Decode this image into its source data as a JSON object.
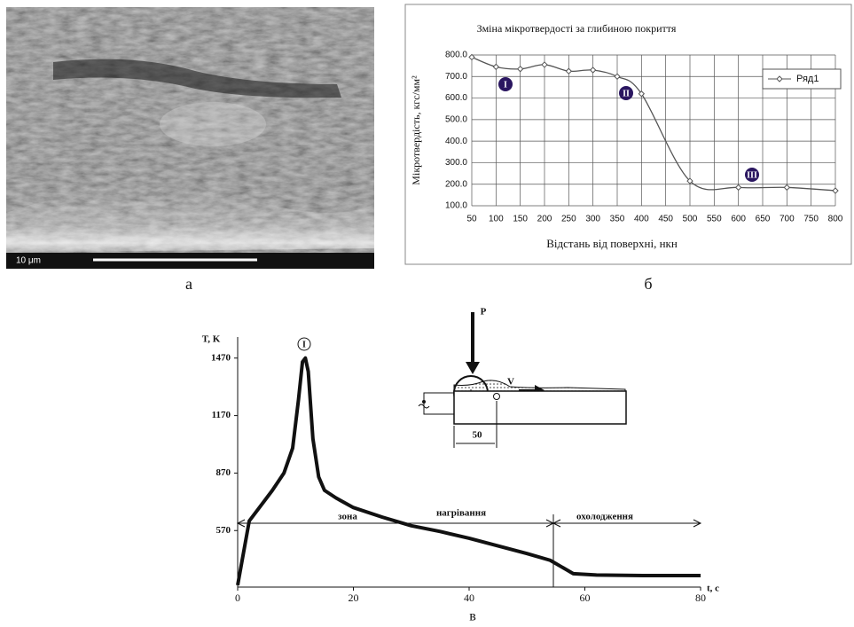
{
  "micrograph": {
    "scale_label": "10 μm"
  },
  "panel_labels": [
    "а",
    "б",
    "в"
  ],
  "chart_data": [
    {
      "type": "line",
      "title": "Зміна мікротвердості за глибиною покриття",
      "x_label": "Відстань від поверхні, нкн",
      "y_label": "Мікротвердість, кгс/мм²",
      "x": [
        50,
        100,
        150,
        200,
        250,
        300,
        350,
        400,
        500,
        600,
        700,
        800
      ],
      "series": [
        {
          "name": "Ряд1",
          "color": "#555555",
          "values": [
            790,
            745,
            735,
            755,
            725,
            730,
            700,
            620,
            215,
            185,
            185,
            170
          ]
        }
      ],
      "xlim": [
        50,
        800
      ],
      "xticks": [
        50,
        100,
        150,
        200,
        250,
        300,
        350,
        400,
        450,
        500,
        550,
        600,
        650,
        700,
        750,
        800
      ],
      "ylim": [
        100,
        800
      ],
      "yticks": [
        {
          "value": 100,
          "label": "100.0"
        },
        {
          "value": 200,
          "label": "200.0"
        },
        {
          "value": 300,
          "label": "300.0"
        },
        {
          "value": 400,
          "label": "400.0"
        },
        {
          "value": 500,
          "label": "500.0"
        },
        {
          "value": 600,
          "label": "600.0"
        },
        {
          "value": 700,
          "label": "700.0"
        },
        {
          "value": 800,
          "label": "800.0"
        }
      ],
      "grid": true,
      "legend": "right",
      "annotations": [
        "I",
        "II",
        "III"
      ]
    },
    {
      "type": "line",
      "x_label": "t, c",
      "y_label": "T, K",
      "x": [
        0,
        2,
        4,
        6,
        8,
        9.5,
        10.5,
        11.2,
        11.7,
        12.2,
        13,
        14,
        15,
        17,
        20,
        25,
        30,
        35,
        40,
        45,
        50,
        54,
        56,
        58,
        62,
        70,
        80
      ],
      "values": [
        285,
        620,
        700,
        780,
        870,
        1000,
        1250,
        1450,
        1470,
        1400,
        1050,
        850,
        780,
        740,
        690,
        640,
        595,
        565,
        530,
        490,
        450,
        415,
        380,
        345,
        338,
        335,
        335
      ],
      "color": "#111111",
      "xlim": [
        0,
        80
      ],
      "xticks": [
        0,
        20,
        40,
        60,
        80
      ],
      "ylim": [
        275,
        1580
      ],
      "yticks": [
        570,
        870,
        1170,
        1470
      ],
      "annotations": [
        "I",
        "зона",
        "нагрівання",
        "охолодження",
        "P",
        "V",
        "50"
      ]
    }
  ]
}
